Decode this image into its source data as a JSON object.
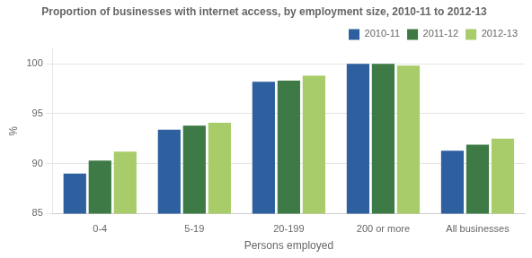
{
  "chart_data": {
    "type": "bar",
    "title": "Proportion of businesses with internet access, by employment size, 2010-11 to 2012-13",
    "xlabel": "Persons employed",
    "ylabel": "%",
    "categories": [
      "0-4",
      "5-19",
      "20-199",
      "200 or more",
      "All businesses"
    ],
    "series": [
      {
        "name": "2010-11",
        "color": "#2E5F9E",
        "values": [
          89.0,
          93.4,
          98.2,
          100.0,
          91.3
        ]
      },
      {
        "name": "2011-12",
        "color": "#3D7A45",
        "values": [
          90.3,
          93.8,
          98.3,
          100.0,
          91.9
        ]
      },
      {
        "name": "2012-13",
        "color": "#A8CC6A",
        "values": [
          91.2,
          94.1,
          98.8,
          99.8,
          92.5
        ]
      }
    ],
    "ylim": [
      85,
      101.5
    ],
    "yticks": [
      85,
      90,
      95,
      100
    ],
    "grid": true,
    "legend": "upper right"
  }
}
